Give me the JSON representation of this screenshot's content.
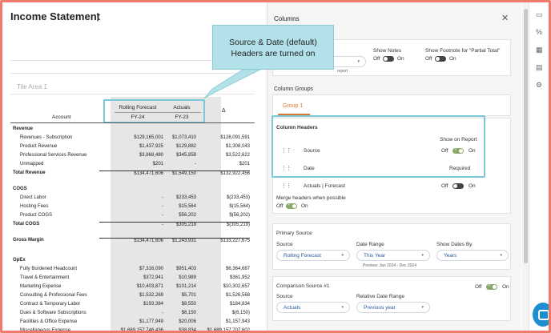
{
  "report": {
    "title": "Income Statement",
    "kebab": "⋮",
    "tile_area": "Tile Area 1",
    "account_header": "Account",
    "delta_header": "Δ",
    "col1_source": "Rolling Forecast",
    "col1_date": "FY-24",
    "col2_source": "Actuals",
    "col2_date": "FY-23",
    "rows": [
      {
        "label": "Revenue",
        "kind": "sec",
        "v1": "",
        "v2": "",
        "v3": ""
      },
      {
        "label": "Revenues - Subscription",
        "kind": "ind",
        "v1": "$129,165,001",
        "v2": "$1,073,410",
        "v3": "$128,091,591"
      },
      {
        "label": "Product Revenue",
        "kind": "ind",
        "v1": "$1,437,925",
        "v2": "$129,882",
        "v3": "$1,308,043"
      },
      {
        "label": "Professional Services Revenue",
        "kind": "ind",
        "v1": "$3,868,480",
        "v2": "$345,858",
        "v3": "$3,522,622"
      },
      {
        "label": "Unmapped",
        "kind": "ind",
        "v1": "$201",
        "v2": "-",
        "v3": "$201"
      },
      {
        "label": "Total Revenue",
        "kind": "tot",
        "v1": "$134,471,606",
        "v2": "$1,549,150",
        "v3": "$132,922,456"
      },
      {
        "label": "",
        "kind": "gap",
        "v1": "",
        "v2": "",
        "v3": ""
      },
      {
        "label": "COGS",
        "kind": "sec",
        "v1": "",
        "v2": "",
        "v3": ""
      },
      {
        "label": "Direct Labor",
        "kind": "ind",
        "v1": "-",
        "v2": "$233,453",
        "v3": "$(233,453)"
      },
      {
        "label": "Hosting Fees",
        "kind": "ind",
        "v1": "-",
        "v2": "$15,564",
        "v3": "$(15,564)"
      },
      {
        "label": "Product COGS",
        "kind": "ind",
        "v1": "-",
        "v2": "$56,202",
        "v3": "$(56,202)"
      },
      {
        "label": "Total COGS",
        "kind": "tot",
        "v1": "-",
        "v2": "$305,219",
        "v3": "$(305,219)"
      },
      {
        "label": "",
        "kind": "gap",
        "v1": "",
        "v2": "",
        "v3": ""
      },
      {
        "label": "Gross Margin",
        "kind": "gm",
        "v1": "$134,471,606",
        "v2": "$1,243,931",
        "v3": "$133,227,675"
      },
      {
        "label": "",
        "kind": "gap",
        "v1": "",
        "v2": "",
        "v3": ""
      },
      {
        "label": "OpEx",
        "kind": "sec",
        "v1": "",
        "v2": "",
        "v3": ""
      },
      {
        "label": "Fully Burdened Headcount",
        "kind": "ind",
        "v1": "$7,316,090",
        "v2": "$951,403",
        "v3": "$6,364,687"
      },
      {
        "label": "Travel & Entertainment",
        "kind": "ind",
        "v1": "$372,941",
        "v2": "$10,989",
        "v3": "$361,952"
      },
      {
        "label": "Marketing Expense",
        "kind": "ind",
        "v1": "$10,403,871",
        "v2": "$101,214",
        "v3": "$10,302,657"
      },
      {
        "label": "Consulting & Professional Fees",
        "kind": "ind",
        "v1": "$1,532,269",
        "v2": "$5,701",
        "v3": "$1,526,568"
      },
      {
        "label": "Contract & Temporary Labor",
        "kind": "ind",
        "v1": "$193,384",
        "v2": "$8,550",
        "v3": "$184,834"
      },
      {
        "label": "Dues & Software Subscriptions",
        "kind": "ind",
        "v1": "-",
        "v2": "$6,150",
        "v3": "$(6,150)"
      },
      {
        "label": "Facilities & Office Expense",
        "kind": "ind",
        "v1": "$1,177,949",
        "v2": "$20,006",
        "v3": "$1,157,943"
      },
      {
        "label": "Miscellaneous Expense",
        "kind": "ind",
        "v1": "$1,689,157,746,436",
        "v2": "$38,834",
        "v3": "$1,689,157,707,602"
      }
    ]
  },
  "callout": {
    "line1": "Source & Date (default)",
    "line2": "Headers are turned on"
  },
  "panel": {
    "title": "Columns",
    "close": "✕",
    "show_notes": "Show Notes",
    "show_footnote": "Show Footnote for \"Partial Total\"",
    "off": "Off",
    "on": "On",
    "report_hint": "report",
    "column_groups": "Column Groups",
    "group_tab": "Group 1",
    "column_headers": "Column Headers",
    "show_on_report": "Show on Report",
    "headers": [
      {
        "label": "Source",
        "state": "toggle"
      },
      {
        "label": "Date",
        "state": "Required"
      },
      {
        "label": "Actuals | Forecast",
        "state": "toggle-off"
      }
    ],
    "merge_headers": "Merge headers when possible",
    "primary_source": "Primary Source",
    "source_label": "Source",
    "date_range_label": "Date Range",
    "show_dates_by_label": "Show Dates By",
    "source_value": "Rolling Forecast",
    "date_range_value": "This Year",
    "show_dates_by_value": "Years",
    "preview": "Preview: Jan 2024 - Dec 2024",
    "comparison_source": "Comparison Source #1",
    "comp_source_label": "Source",
    "relative_date_label": "Relative Date Range",
    "comp_source_value": "Actuals",
    "relative_date_value": "Previous year"
  },
  "rail_icons": [
    "comment-icon",
    "percent-icon",
    "table-icon",
    "columns-icon",
    "settings-icon"
  ]
}
